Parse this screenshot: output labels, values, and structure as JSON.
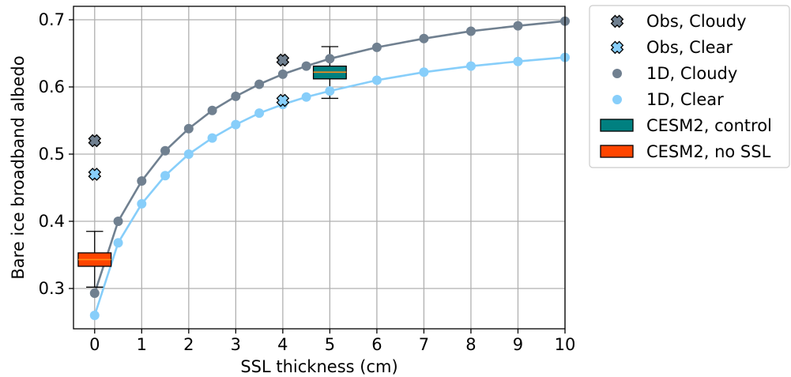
{
  "chart_data": {
    "type": "line",
    "xlabel": "SSL thickness (cm)",
    "ylabel": "Bare ice broadband albedo",
    "xlim": [
      -0.45,
      10
    ],
    "ylim": [
      0.24,
      0.72
    ],
    "xticks": [
      0,
      1,
      2,
      3,
      4,
      5,
      6,
      7,
      8,
      9,
      10
    ],
    "yticks": [
      0.3,
      0.4,
      0.5,
      0.6,
      0.7
    ],
    "grid": true,
    "legend_position": "outside-right",
    "series": [
      {
        "name": "1D, Cloudy",
        "kind": "line-markers",
        "color": "#708090",
        "x": [
          0,
          0.5,
          1,
          1.5,
          2,
          2.5,
          3,
          3.5,
          4,
          4.5,
          5,
          6,
          7,
          8,
          9,
          10
        ],
        "y": [
          0.293,
          0.4,
          0.46,
          0.505,
          0.538,
          0.565,
          0.586,
          0.604,
          0.619,
          0.631,
          0.642,
          0.659,
          0.672,
          0.683,
          0.691,
          0.698
        ]
      },
      {
        "name": "1D, Clear",
        "kind": "line-markers",
        "color": "#87CEFA",
        "x": [
          0,
          0.5,
          1,
          1.5,
          2,
          2.5,
          3,
          3.5,
          4,
          4.5,
          5,
          6,
          7,
          8,
          9,
          10
        ],
        "y": [
          0.26,
          0.368,
          0.426,
          0.468,
          0.5,
          0.524,
          0.544,
          0.561,
          0.574,
          0.585,
          0.594,
          0.61,
          0.622,
          0.631,
          0.638,
          0.644
        ]
      },
      {
        "name": "Obs, Cloudy",
        "kind": "x-markers",
        "color": "#708090",
        "x": [
          0,
          4
        ],
        "y": [
          0.52,
          0.64
        ]
      },
      {
        "name": "Obs, Clear",
        "kind": "x-markers",
        "color": "#87CEFA",
        "x": [
          0,
          4
        ],
        "y": [
          0.47,
          0.58
        ]
      }
    ],
    "boxes": [
      {
        "name": "CESM2, control",
        "color": "#008080",
        "x": 5,
        "whisker_low": 0.583,
        "q1": 0.612,
        "median": 0.622,
        "q3": 0.631,
        "whisker_high": 0.66
      },
      {
        "name": "CESM2, no SSL",
        "color": "#FF4500",
        "x": 0,
        "whisker_low": 0.302,
        "q1": 0.333,
        "median": 0.343,
        "q3": 0.353,
        "whisker_high": 0.385
      }
    ],
    "legend": [
      "Obs, Cloudy",
      "Obs, Clear",
      "1D, Cloudy",
      "1D, Clear",
      "CESM2, control",
      "CESM2, no SSL"
    ]
  }
}
